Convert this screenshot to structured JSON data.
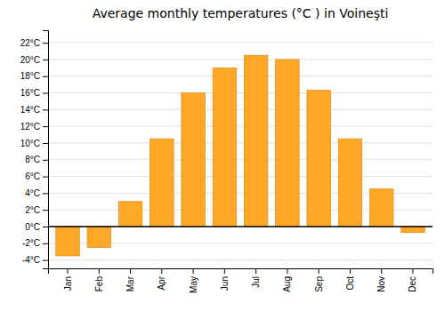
{
  "chart_data": {
    "type": "bar",
    "title": "Average monthly temperatures (°C ) in Voineşti",
    "categories": [
      "Jan",
      "Feb",
      "Mar",
      "Apr",
      "May",
      "Jun",
      "Jul",
      "Aug",
      "Sep",
      "Oct",
      "Nov",
      "Dec"
    ],
    "values": [
      -3.5,
      -2.5,
      3.0,
      10.5,
      16.0,
      19.0,
      20.5,
      20.0,
      16.3,
      10.5,
      4.5,
      -0.7
    ],
    "color": "#FFA726",
    "ylim": [
      -5,
      23.5
    ],
    "yticks": [
      {
        "value": -4,
        "label": "-4°C"
      },
      {
        "value": -2,
        "label": "-2°C"
      },
      {
        "value": 0,
        "label": "0°C"
      },
      {
        "value": 2,
        "label": "2°C"
      },
      {
        "value": 4,
        "label": "4°C"
      },
      {
        "value": 6,
        "label": "6°C"
      },
      {
        "value": 8,
        "label": "8°C"
      },
      {
        "value": 10,
        "label": "10°C"
      },
      {
        "value": 12,
        "label": "12°C"
      },
      {
        "value": 14,
        "label": "14°C"
      },
      {
        "value": 16,
        "label": "16°C"
      },
      {
        "value": 18,
        "label": "18°C"
      },
      {
        "value": 20,
        "label": "20°C"
      },
      {
        "value": 22,
        "label": "22°C"
      }
    ],
    "grid": true
  }
}
